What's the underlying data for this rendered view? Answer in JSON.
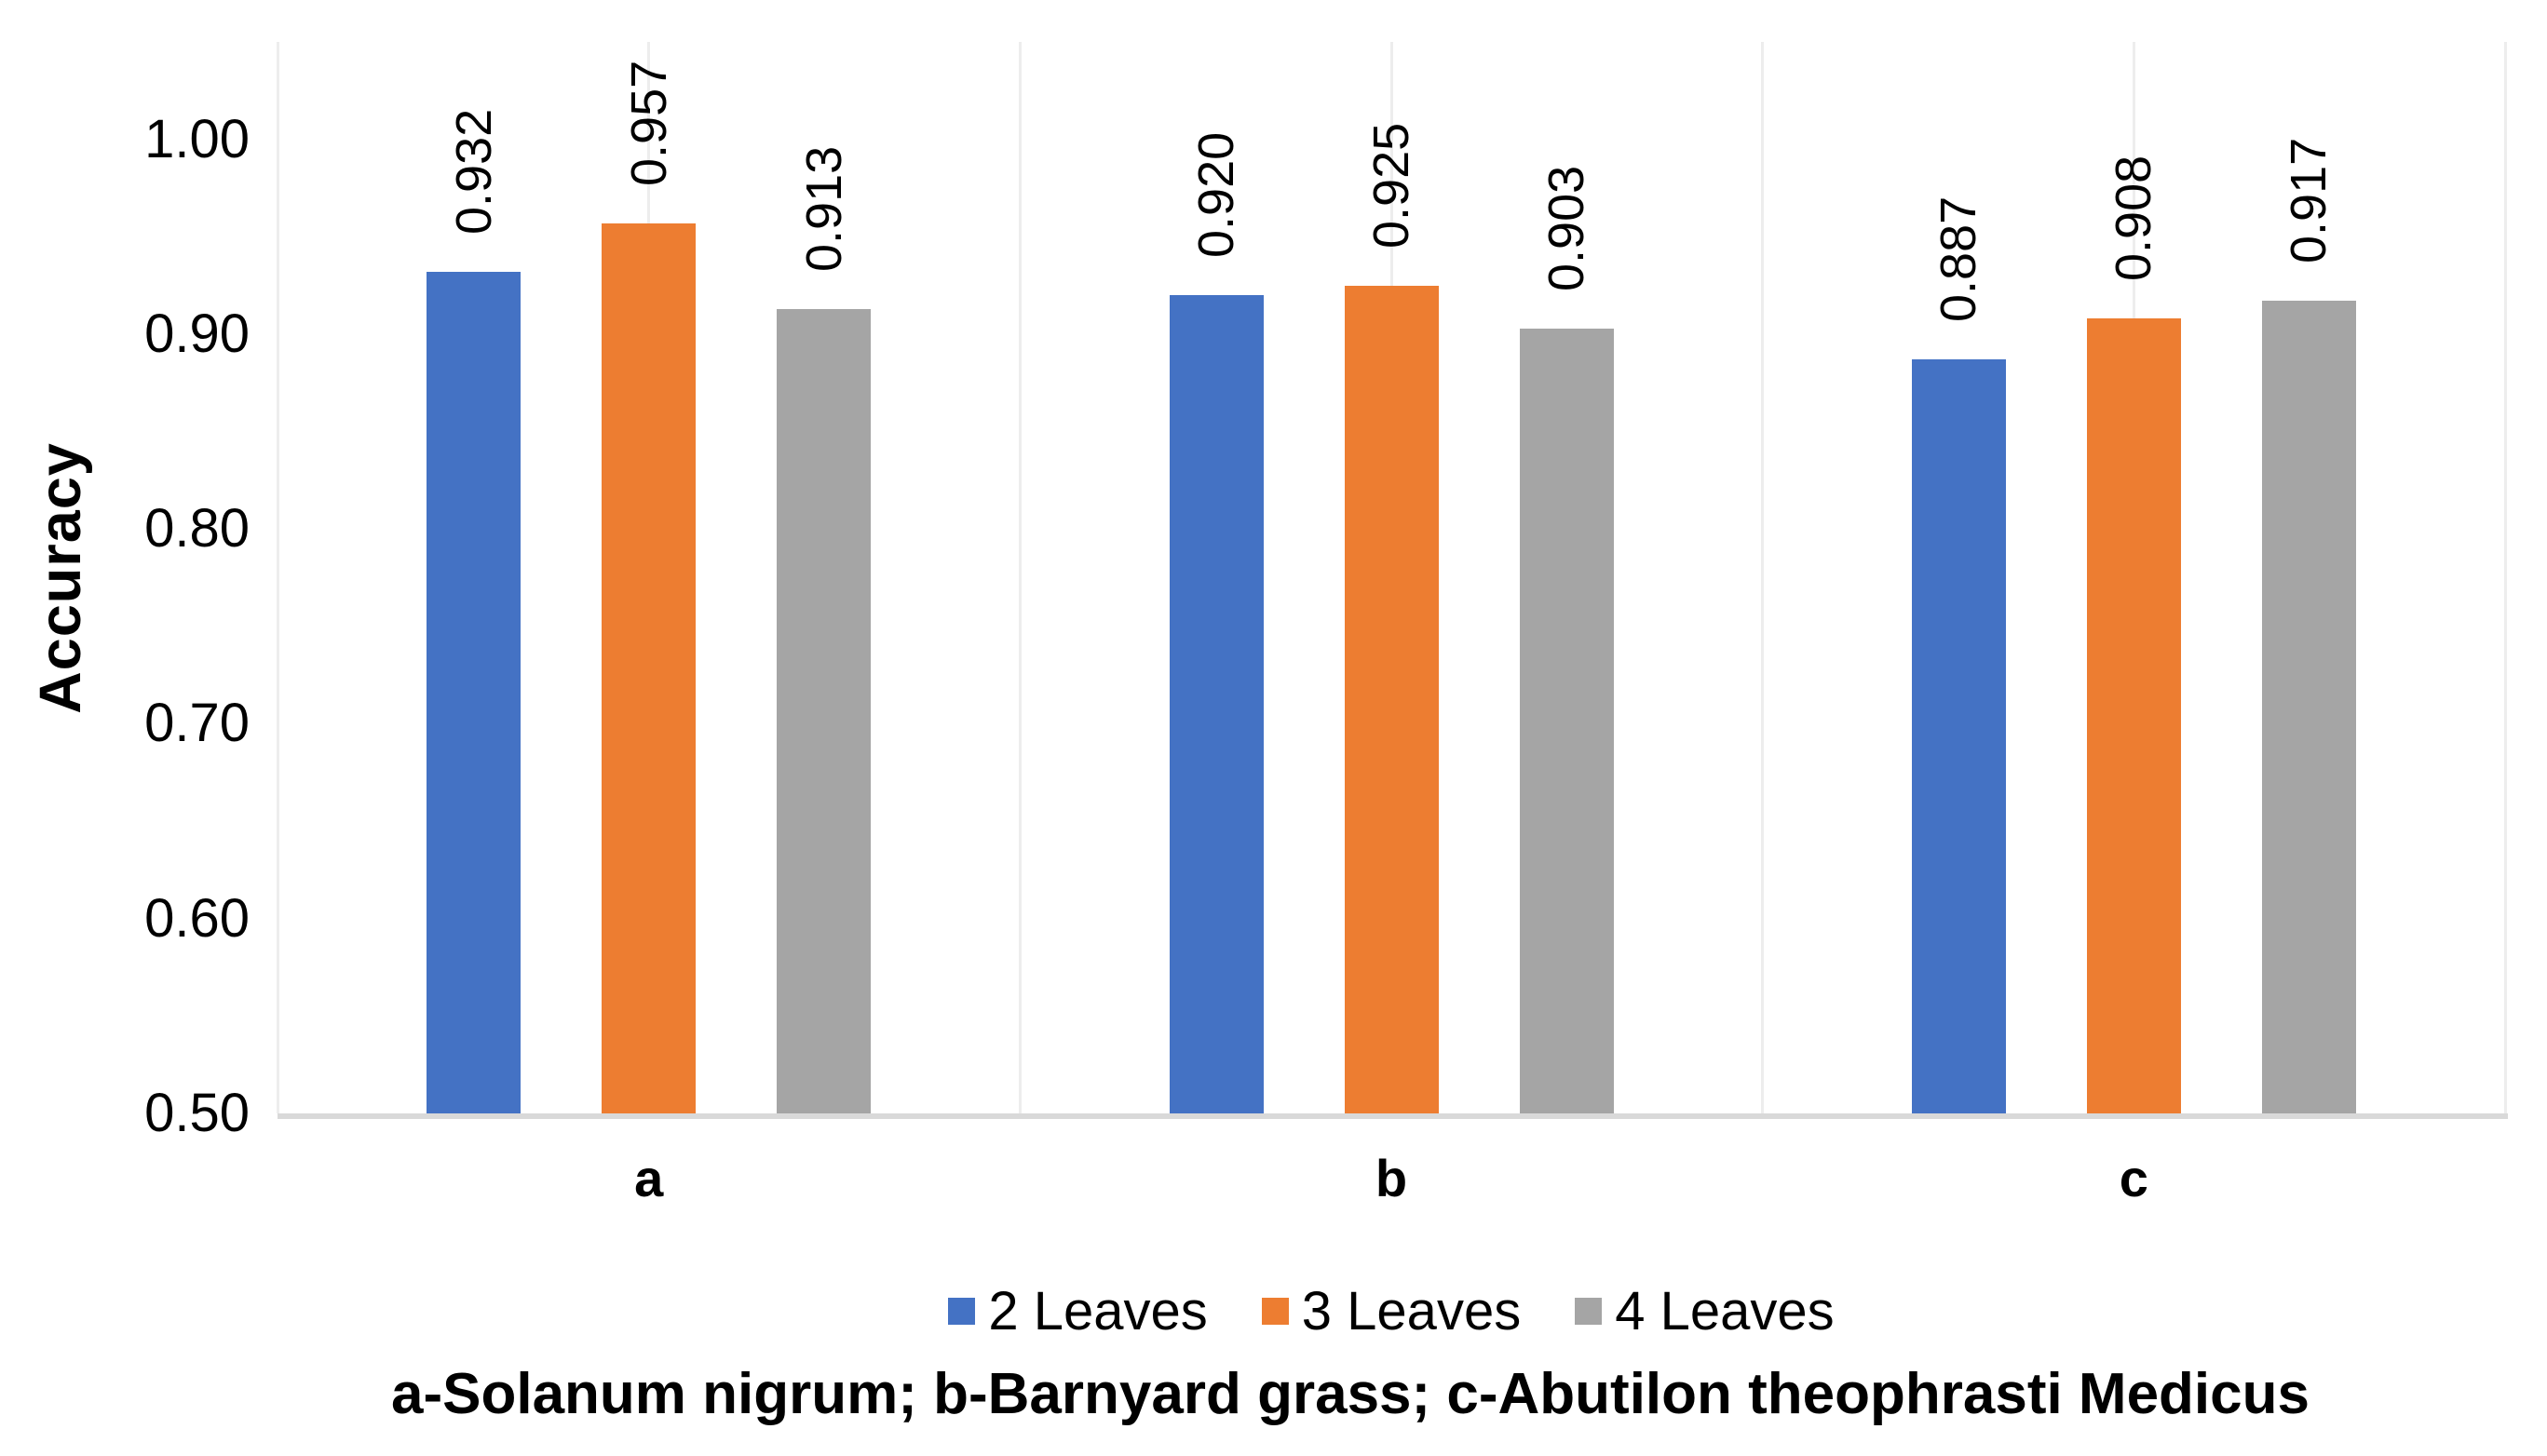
{
  "chart_data": {
    "type": "bar",
    "title": "",
    "xlabel": "",
    "ylabel": "Accuracy",
    "categories": [
      "a",
      "b",
      "c"
    ],
    "series": [
      {
        "name": "2 Leaves",
        "color": "#4472C4",
        "values": [
          0.932,
          0.92,
          0.887
        ],
        "labels": [
          "0.932",
          "0.920",
          "0.887"
        ]
      },
      {
        "name": "3 Leaves",
        "color": "#ED7D31",
        "values": [
          0.957,
          0.925,
          0.908
        ],
        "labels": [
          "0.957",
          "0.925",
          "0.908"
        ]
      },
      {
        "name": "4 Leaves",
        "color": "#A5A5A5",
        "values": [
          0.913,
          0.903,
          0.917
        ],
        "labels": [
          "0.913",
          "0.903",
          "0.917"
        ]
      }
    ],
    "ylim": [
      0.5,
      1.05
    ],
    "ytick_labels": [
      "0.50",
      "0.60",
      "0.70",
      "0.80",
      "0.90",
      "1.00"
    ],
    "data_label_rotation": -90,
    "grid": {
      "vertical": true,
      "horizontal": false
    },
    "legend": {
      "position": "bottom",
      "entries": [
        "2 Leaves",
        "3 Leaves",
        "4 Leaves"
      ]
    },
    "caption": "a-Solanum nigrum; b-Barnyard grass; c-Abutilon theophrasti Medicus"
  }
}
